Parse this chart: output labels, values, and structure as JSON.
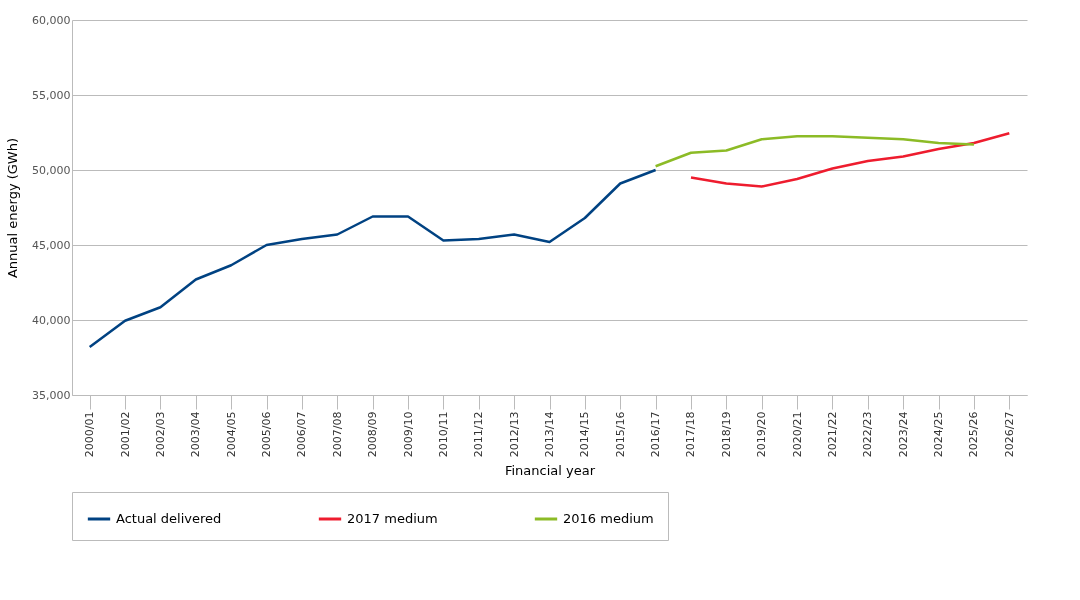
{
  "chart_data": {
    "type": "line",
    "xlabel": "Financial year",
    "ylabel": "Annual energy (GWh)",
    "categories": [
      "2000/01",
      "2001/02",
      "2002/03",
      "2003/04",
      "2004/05",
      "2005/06",
      "2006/07",
      "2007/08",
      "2008/09",
      "2009/10",
      "2010/11",
      "2011/12",
      "2012/13",
      "2013/14",
      "2014/15",
      "2015/16",
      "2016/17",
      "2017/18",
      "2018/19",
      "2019/20",
      "2020/21",
      "2021/22",
      "2022/23",
      "2023/24",
      "2024/25",
      "2025/26",
      "2026/27"
    ],
    "series": [
      {
        "name": "Actual delivered",
        "color": "#004282",
        "values": [
          38200,
          39950,
          40850,
          42700,
          43650,
          45000,
          45400,
          45700,
          46900,
          46900,
          45300,
          45400,
          45700,
          45200,
          46800,
          49100,
          50000,
          null,
          null,
          null,
          null,
          null,
          null,
          null,
          null,
          null,
          null
        ]
      },
      {
        "name": "2017 medium",
        "color": "#ee1c2e",
        "values": [
          null,
          null,
          null,
          null,
          null,
          null,
          null,
          null,
          null,
          null,
          null,
          null,
          null,
          null,
          null,
          null,
          null,
          49500,
          49100,
          48900,
          49400,
          50100,
          50600,
          50900,
          51400,
          51800,
          52450
        ]
      },
      {
        "name": "2016 medium",
        "color": "#8cbb26",
        "values": [
          null,
          null,
          null,
          null,
          null,
          null,
          null,
          null,
          null,
          null,
          null,
          null,
          null,
          null,
          null,
          null,
          50250,
          51150,
          51300,
          52050,
          52250,
          52250,
          52150,
          52050,
          51800,
          51700,
          null
        ]
      }
    ],
    "ylim": [
      35000,
      60000
    ],
    "yticks": [
      {
        "value": 35000,
        "label": "35,000"
      },
      {
        "value": 40000,
        "label": "40,000"
      },
      {
        "value": 45000,
        "label": "45,000"
      },
      {
        "value": 50000,
        "label": "50,000"
      },
      {
        "value": 55000,
        "label": "55,000"
      },
      {
        "value": 60000,
        "label": "60,000"
      }
    ],
    "grid": "y",
    "legend": "bottom",
    "line_style": "solid",
    "marker": "none"
  }
}
